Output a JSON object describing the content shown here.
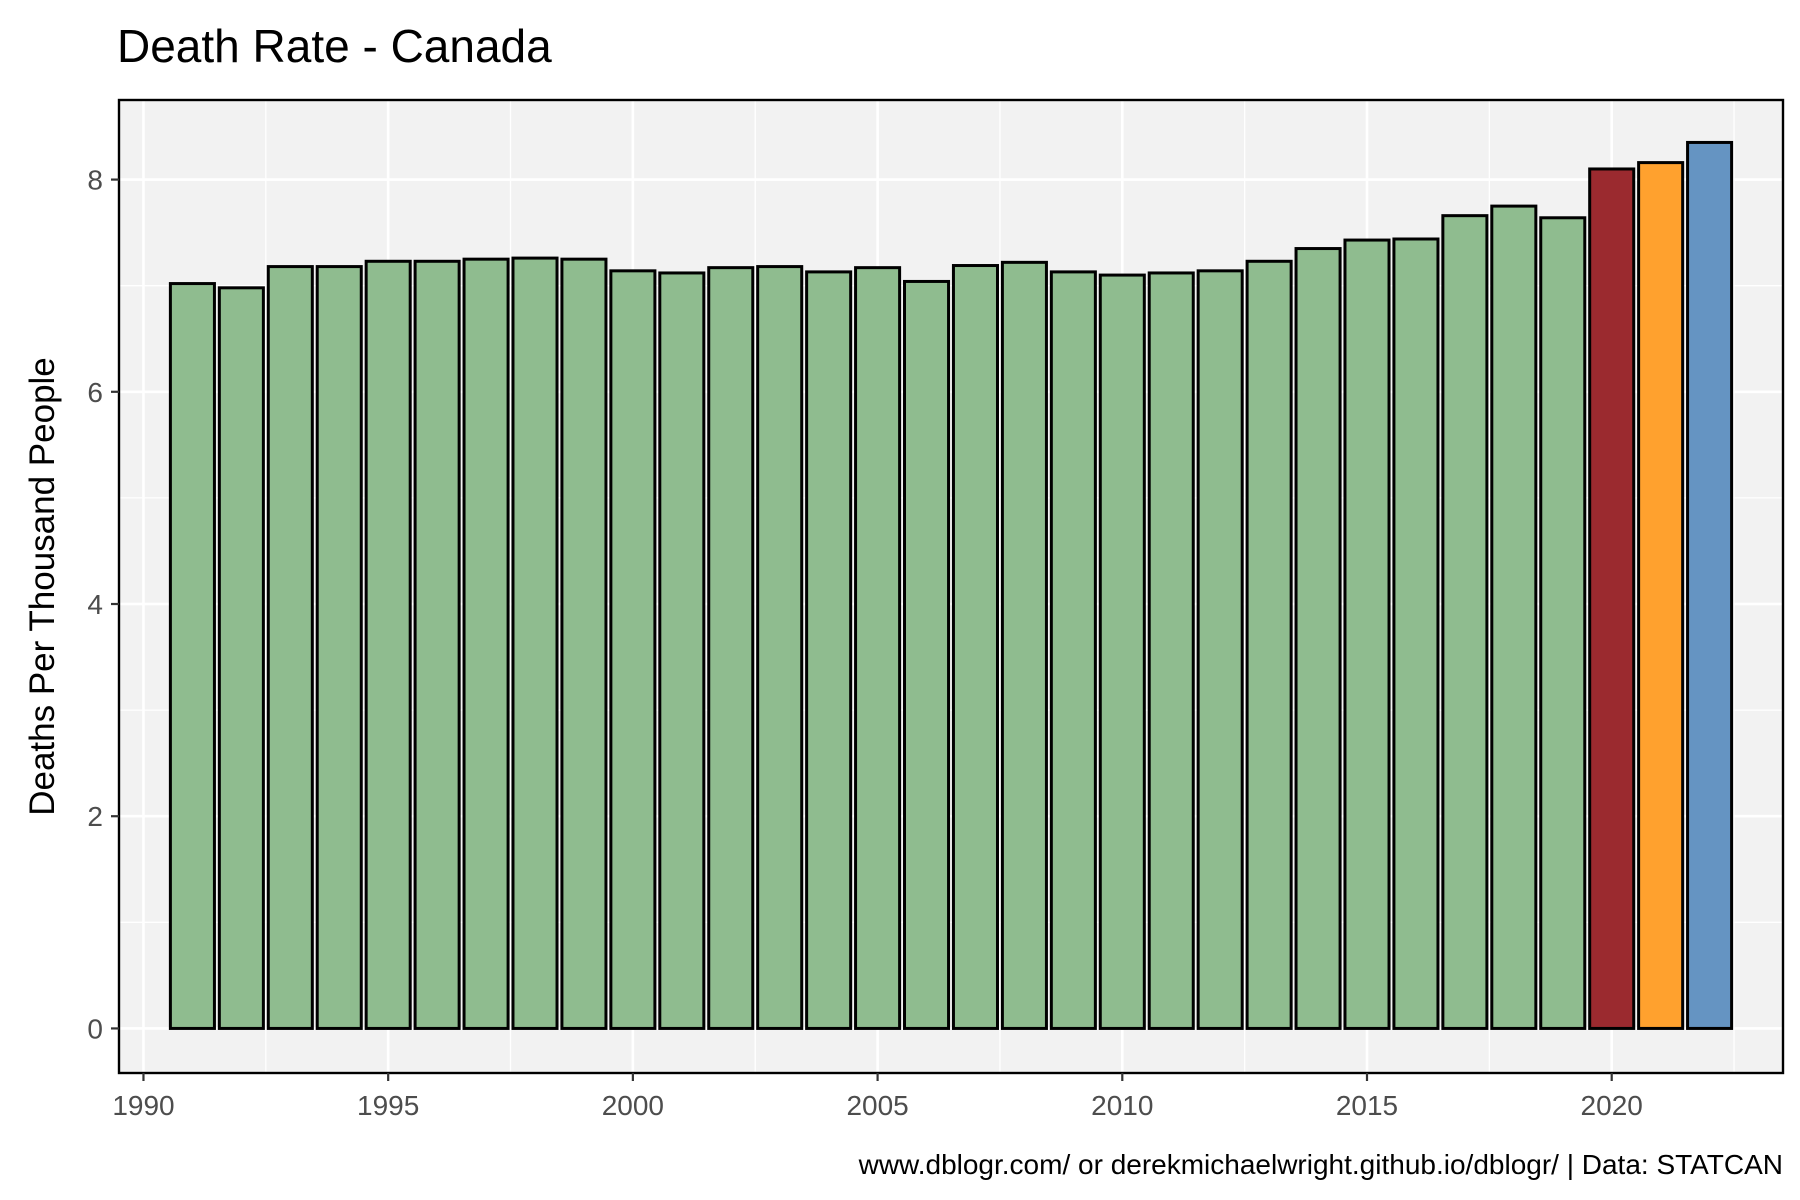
{
  "chart_data": {
    "type": "bar",
    "title": "Death Rate - Canada",
    "xlabel": "",
    "ylabel": "Deaths Per Thousand People",
    "caption": "www.dblogr.com/ or derekmichaelwright.github.io/dblogr/ | Data: STATCAN",
    "x": [
      1991,
      1992,
      1993,
      1994,
      1995,
      1996,
      1997,
      1998,
      1999,
      2000,
      2001,
      2002,
      2003,
      2004,
      2005,
      2006,
      2007,
      2008,
      2009,
      2010,
      2011,
      2012,
      2013,
      2014,
      2015,
      2016,
      2017,
      2018,
      2019,
      2020,
      2021,
      2022
    ],
    "values": [
      7.02,
      6.98,
      7.18,
      7.18,
      7.23,
      7.23,
      7.25,
      7.26,
      7.25,
      7.14,
      7.12,
      7.17,
      7.18,
      7.13,
      7.17,
      7.04,
      7.19,
      7.22,
      7.13,
      7.1,
      7.12,
      7.14,
      7.23,
      7.35,
      7.43,
      7.44,
      7.66,
      7.75,
      7.64,
      8.1,
      8.16,
      8.35
    ],
    "colors": [
      "#8fbc8f",
      "#8fbc8f",
      "#8fbc8f",
      "#8fbc8f",
      "#8fbc8f",
      "#8fbc8f",
      "#8fbc8f",
      "#8fbc8f",
      "#8fbc8f",
      "#8fbc8f",
      "#8fbc8f",
      "#8fbc8f",
      "#8fbc8f",
      "#8fbc8f",
      "#8fbc8f",
      "#8fbc8f",
      "#8fbc8f",
      "#8fbc8f",
      "#8fbc8f",
      "#8fbc8f",
      "#8fbc8f",
      "#8fbc8f",
      "#8fbc8f",
      "#8fbc8f",
      "#8fbc8f",
      "#8fbc8f",
      "#8fbc8f",
      "#8fbc8f",
      "#8fbc8f",
      "#9b2a2f",
      "#ffa12e",
      "#6594c2"
    ],
    "xlim": [
      1989.5,
      2023.5
    ],
    "ylim": [
      -0.42,
      8.75
    ],
    "xticks": [
      1990,
      1995,
      2000,
      2005,
      2010,
      2015,
      2020
    ],
    "xtick_labels": [
      "1990",
      "1995",
      "2000",
      "2005",
      "2010",
      "2015",
      "2020"
    ],
    "yticks": [
      0,
      2,
      4,
      6,
      8
    ],
    "ytick_labels": [
      "0",
      "2",
      "4",
      "6",
      "8"
    ],
    "grid": true,
    "legend": "none",
    "panel_background": "#f2f2f2",
    "grid_color": "#ffffff",
    "bar_outline": "#000000"
  }
}
